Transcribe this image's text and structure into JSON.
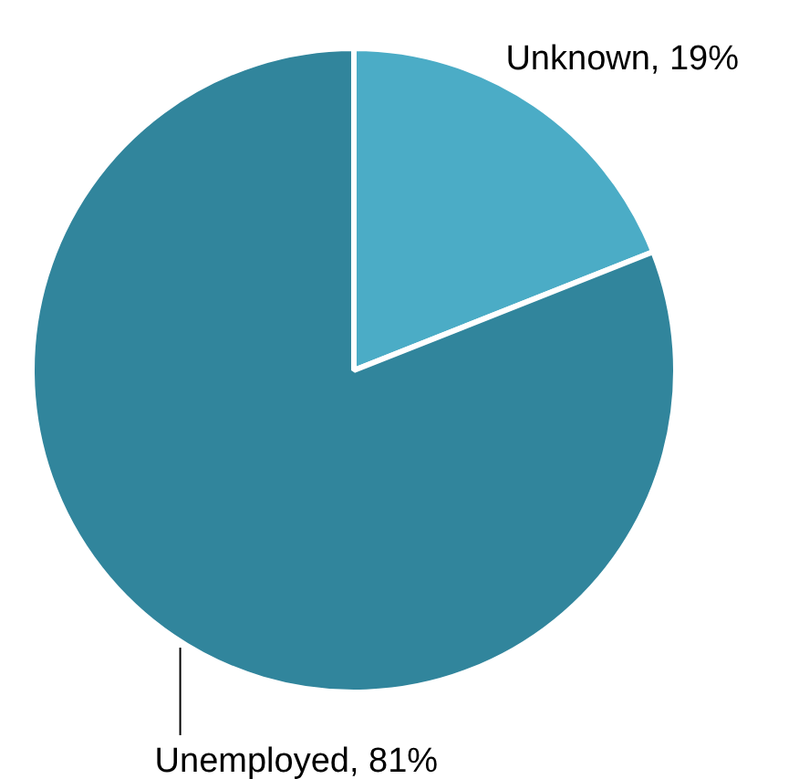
{
  "chart_data": {
    "type": "pie",
    "categories": [
      "Unknown",
      "Unemployed"
    ],
    "values": [
      19,
      81
    ],
    "colors": [
      "#4bacc6",
      "#31859c"
    ],
    "value_labels": [
      "19%",
      "81%"
    ],
    "legend": false
  }
}
